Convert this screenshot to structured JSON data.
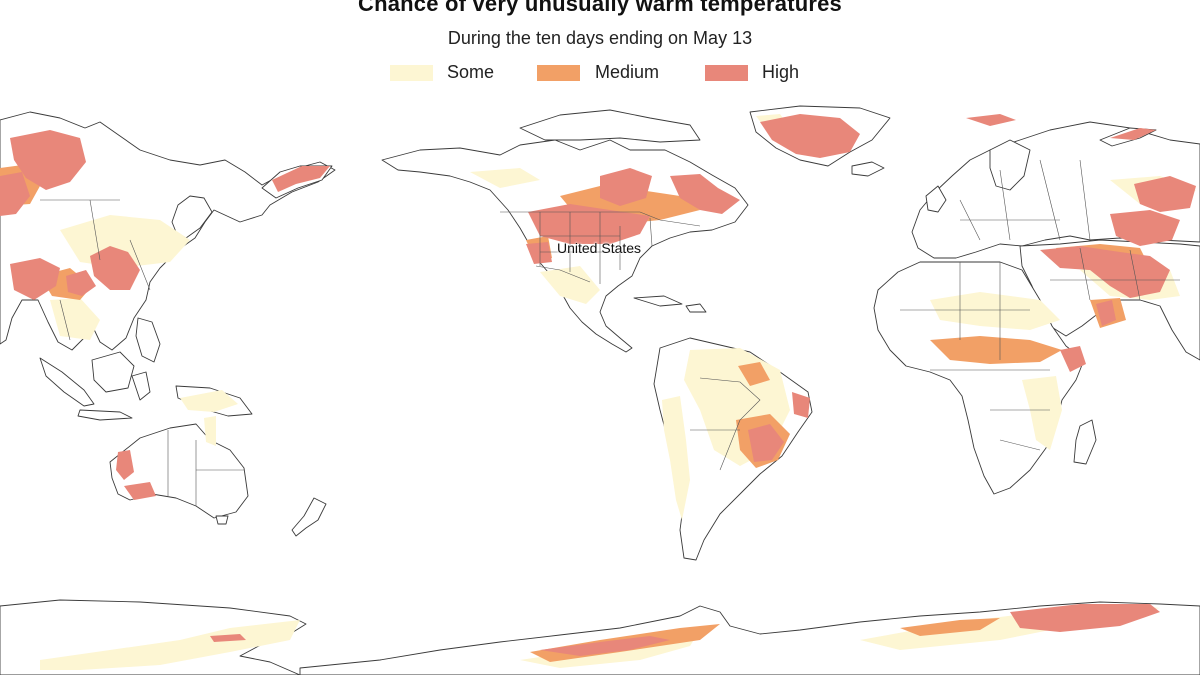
{
  "title": "Chance of very unusually warm temperatures",
  "subtitle": "During the ten days ending on May 13",
  "legend": [
    {
      "label": "Some",
      "color": "#fdf6d3"
    },
    {
      "label": "Medium",
      "color": "#f2a066"
    },
    {
      "label": "High",
      "color": "#e8877a"
    }
  ],
  "map": {
    "projection": "Pacific-centered equirectangular world map",
    "labels": {
      "united_states": "United States"
    }
  }
}
